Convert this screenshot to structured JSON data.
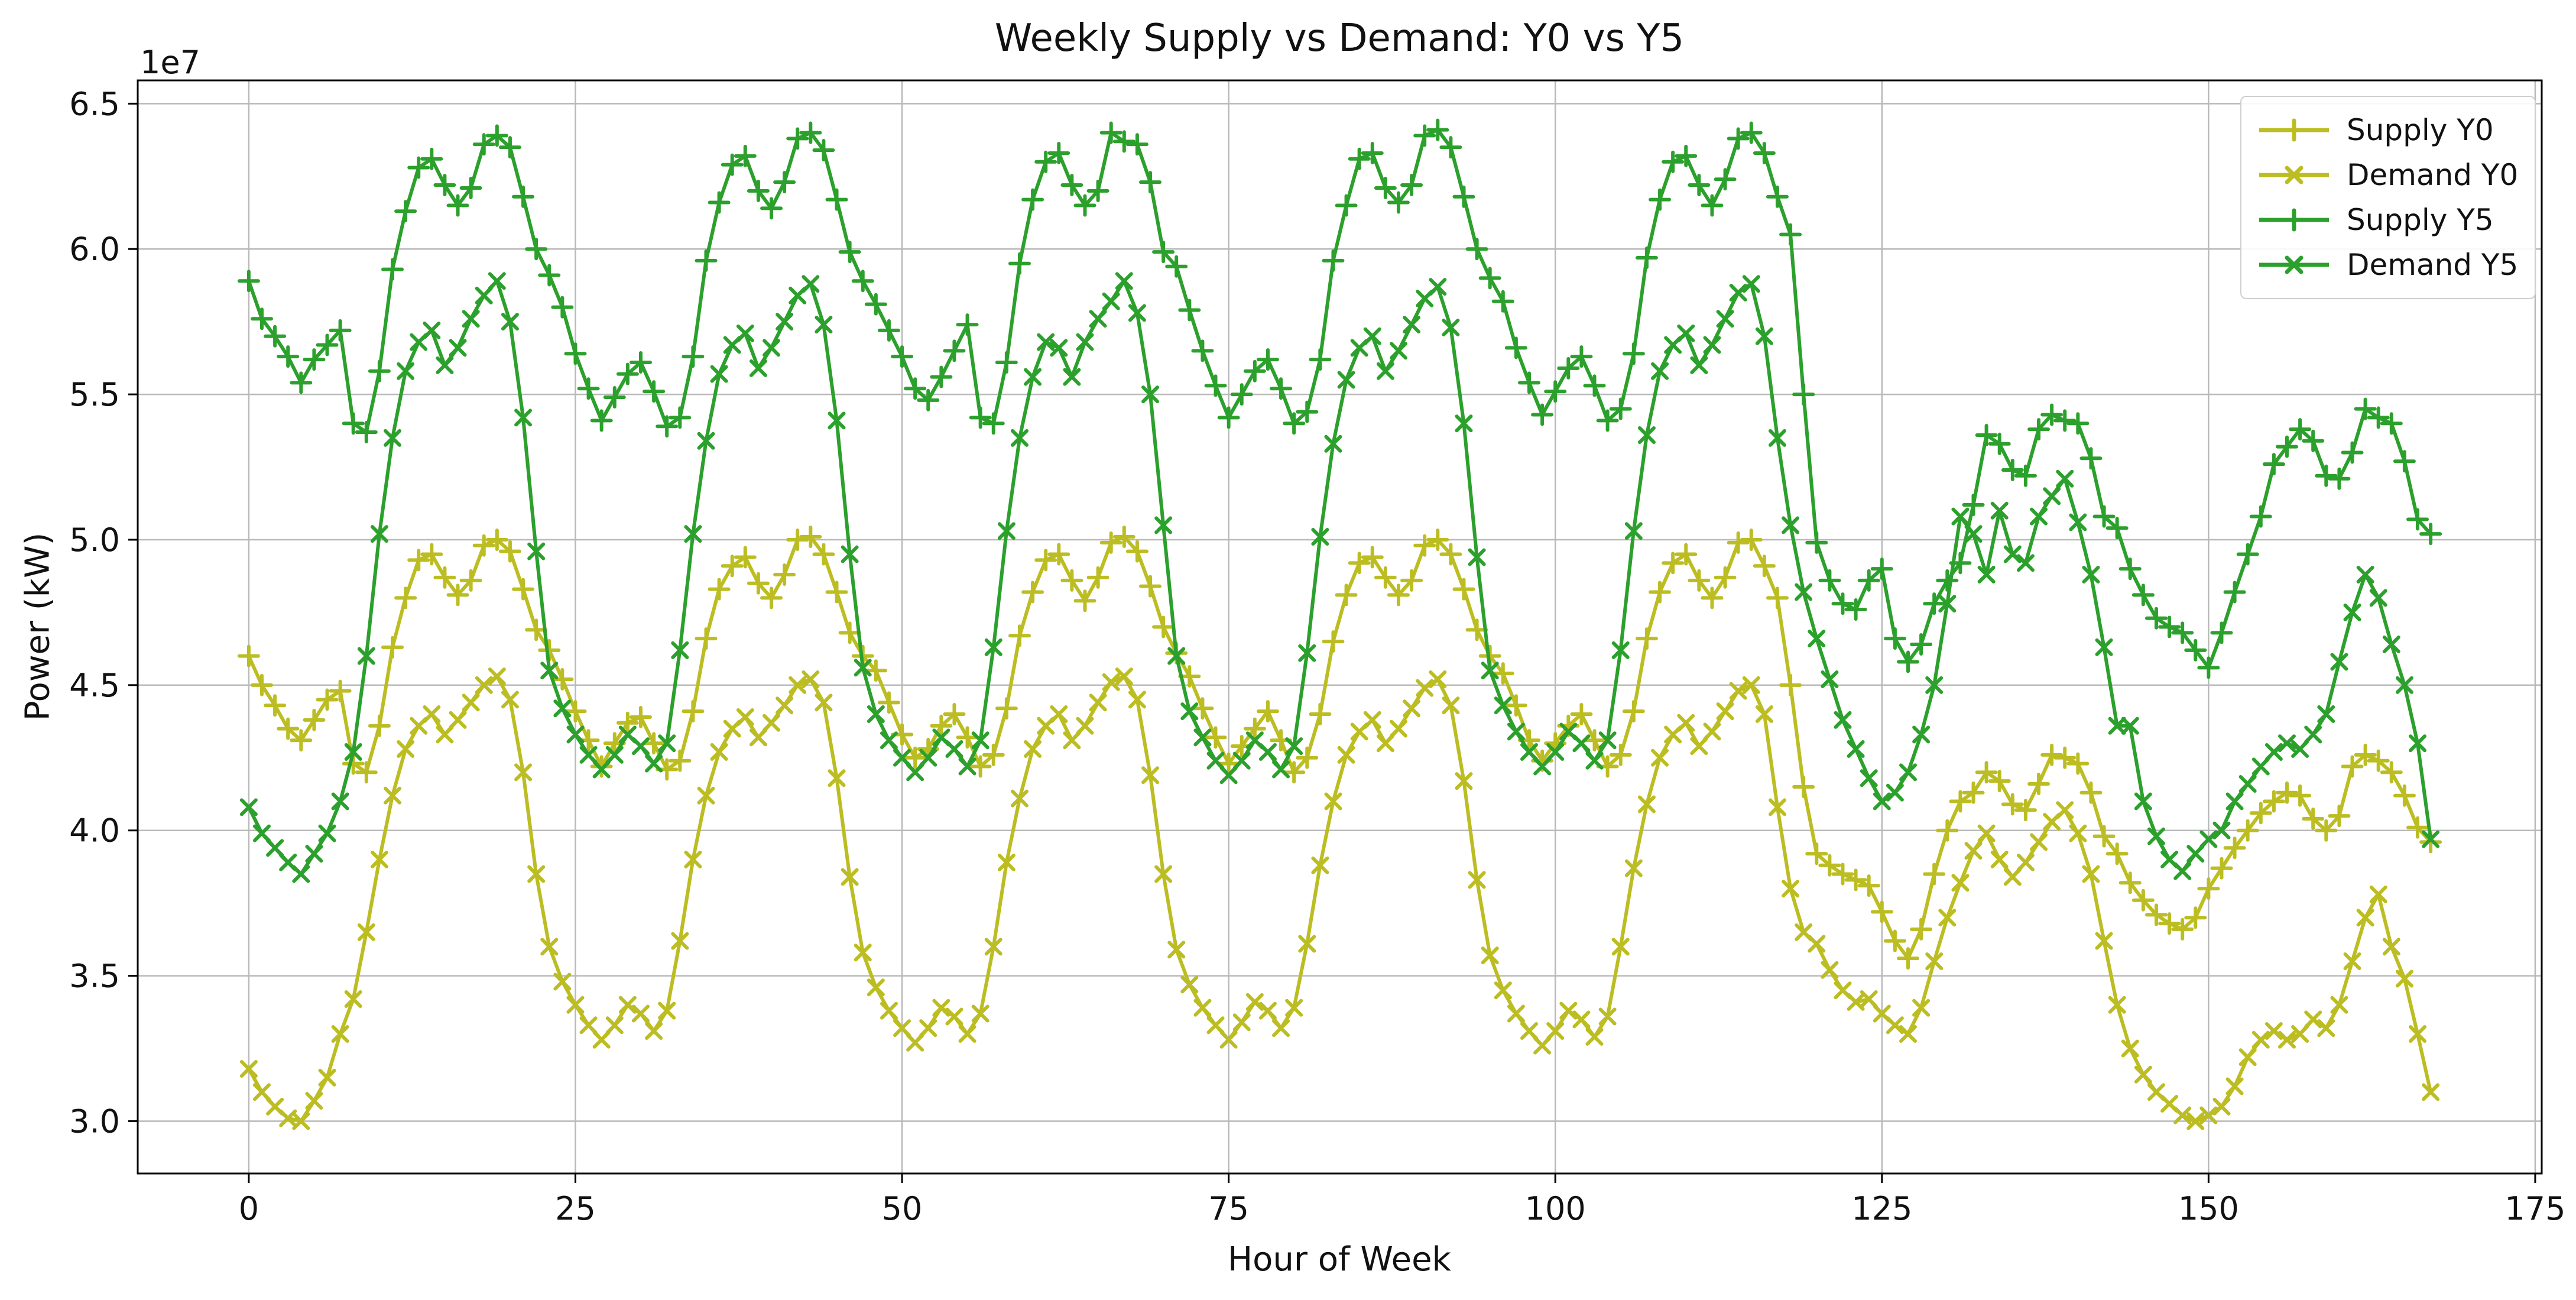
{
  "figure": {
    "title": "Weekly Supply vs Demand: Y0 vs Y5",
    "xlabel": "Hour of Week",
    "ylabel": "Power (kW)",
    "offset_text": "1e7"
  },
  "chart_data": {
    "type": "line",
    "title": "Weekly Supply vs Demand: Y0 vs Y5",
    "xlabel": "Hour of Week",
    "ylabel": "Power (kW)",
    "y_offset_label": "1e7",
    "values_scale": 10000000,
    "values_unit": "kW",
    "grid": true,
    "legend_position": "upper right",
    "x_ticks": [
      0,
      25,
      50,
      75,
      100,
      125,
      150,
      175
    ],
    "y_ticks": [
      3.0,
      3.5,
      4.0,
      4.5,
      5.0,
      5.5,
      6.0,
      6.5
    ],
    "xlim": [
      -8.5,
      175.5
    ],
    "ylim": [
      2.82,
      6.58
    ],
    "x": [
      0,
      1,
      2,
      3,
      4,
      5,
      6,
      7,
      8,
      9,
      10,
      11,
      12,
      13,
      14,
      15,
      16,
      17,
      18,
      19,
      20,
      21,
      22,
      23,
      24,
      25,
      26,
      27,
      28,
      29,
      30,
      31,
      32,
      33,
      34,
      35,
      36,
      37,
      38,
      39,
      40,
      41,
      42,
      43,
      44,
      45,
      46,
      47,
      48,
      49,
      50,
      51,
      52,
      53,
      54,
      55,
      56,
      57,
      58,
      59,
      60,
      61,
      62,
      63,
      64,
      65,
      66,
      67,
      68,
      69,
      70,
      71,
      72,
      73,
      74,
      75,
      76,
      77,
      78,
      79,
      80,
      81,
      82,
      83,
      84,
      85,
      86,
      87,
      88,
      89,
      90,
      91,
      92,
      93,
      94,
      95,
      96,
      97,
      98,
      99,
      100,
      101,
      102,
      103,
      104,
      105,
      106,
      107,
      108,
      109,
      110,
      111,
      112,
      113,
      114,
      115,
      116,
      117,
      118,
      119,
      120,
      121,
      122,
      123,
      124,
      125,
      126,
      127,
      128,
      129,
      130,
      131,
      132,
      133,
      134,
      135,
      136,
      137,
      138,
      139,
      140,
      141,
      142,
      143,
      144,
      145,
      146,
      147,
      148,
      149,
      150,
      151,
      152,
      153,
      154,
      155,
      156,
      157,
      158,
      159,
      160,
      161,
      162,
      163,
      164,
      165,
      166,
      167
    ],
    "series": [
      {
        "name": "Supply Y0",
        "color": "#bcbd22",
        "marker": "plus",
        "values": [
          4.6,
          4.5,
          4.43,
          4.35,
          4.31,
          4.38,
          4.45,
          4.48,
          4.23,
          4.2,
          4.36,
          4.63,
          4.8,
          4.93,
          4.95,
          4.87,
          4.81,
          4.86,
          4.98,
          5.0,
          4.96,
          4.83,
          4.69,
          4.62,
          4.52,
          4.41,
          4.31,
          4.22,
          4.3,
          4.37,
          4.39,
          4.3,
          4.21,
          4.24,
          4.41,
          4.66,
          4.83,
          4.91,
          4.94,
          4.85,
          4.8,
          4.88,
          5.0,
          5.01,
          4.95,
          4.82,
          4.68,
          4.6,
          4.55,
          4.44,
          4.33,
          4.25,
          4.28,
          4.36,
          4.4,
          4.32,
          4.22,
          4.26,
          4.42,
          4.67,
          4.82,
          4.93,
          4.95,
          4.86,
          4.79,
          4.87,
          4.99,
          5.01,
          4.96,
          4.84,
          4.7,
          4.61,
          4.53,
          4.42,
          4.32,
          4.23,
          4.29,
          4.35,
          4.41,
          4.31,
          4.2,
          4.25,
          4.4,
          4.65,
          4.81,
          4.92,
          4.94,
          4.87,
          4.81,
          4.86,
          4.98,
          5.0,
          4.95,
          4.83,
          4.69,
          4.6,
          4.54,
          4.43,
          4.31,
          4.24,
          4.3,
          4.36,
          4.4,
          4.31,
          4.22,
          4.26,
          4.41,
          4.66,
          4.82,
          4.92,
          4.95,
          4.86,
          4.8,
          4.87,
          4.99,
          5.0,
          4.91,
          4.8,
          4.5,
          4.15,
          3.92,
          3.88,
          3.85,
          3.83,
          3.81,
          3.72,
          3.62,
          3.56,
          3.66,
          3.85,
          4.0,
          4.1,
          4.13,
          4.2,
          4.17,
          4.09,
          4.07,
          4.16,
          4.26,
          4.25,
          4.23,
          4.13,
          3.98,
          3.92,
          3.82,
          3.76,
          3.71,
          3.68,
          3.66,
          3.7,
          3.8,
          3.87,
          3.94,
          4.0,
          4.06,
          4.1,
          4.13,
          4.12,
          4.04,
          4.0,
          4.05,
          4.22,
          4.26,
          4.24,
          4.2,
          4.12,
          4.01,
          3.96
        ]
      },
      {
        "name": "Demand Y0",
        "color": "#bcbd22",
        "marker": "x",
        "values": [
          3.18,
          3.1,
          3.05,
          3.01,
          3.0,
          3.07,
          3.15,
          3.3,
          3.42,
          3.65,
          3.9,
          4.12,
          4.28,
          4.36,
          4.4,
          4.33,
          4.38,
          4.44,
          4.5,
          4.53,
          4.45,
          4.2,
          3.85,
          3.6,
          3.48,
          3.4,
          3.33,
          3.28,
          3.33,
          3.4,
          3.37,
          3.31,
          3.38,
          3.62,
          3.9,
          4.12,
          4.27,
          4.35,
          4.39,
          4.32,
          4.37,
          4.43,
          4.5,
          4.52,
          4.44,
          4.18,
          3.84,
          3.58,
          3.46,
          3.38,
          3.32,
          3.27,
          3.32,
          3.39,
          3.36,
          3.3,
          3.37,
          3.6,
          3.89,
          4.11,
          4.28,
          4.36,
          4.4,
          4.31,
          4.36,
          4.44,
          4.51,
          4.53,
          4.45,
          4.19,
          3.85,
          3.59,
          3.47,
          3.39,
          3.33,
          3.28,
          3.34,
          3.41,
          3.38,
          3.32,
          3.39,
          3.61,
          3.88,
          4.1,
          4.26,
          4.34,
          4.38,
          4.3,
          4.35,
          4.42,
          4.49,
          4.52,
          4.43,
          4.17,
          3.83,
          3.57,
          3.45,
          3.37,
          3.31,
          3.26,
          3.31,
          3.38,
          3.35,
          3.29,
          3.36,
          3.6,
          3.87,
          4.09,
          4.25,
          4.33,
          4.37,
          4.29,
          4.34,
          4.41,
          4.48,
          4.5,
          4.4,
          4.08,
          3.8,
          3.65,
          3.61,
          3.52,
          3.45,
          3.41,
          3.42,
          3.37,
          3.33,
          3.3,
          3.39,
          3.55,
          3.7,
          3.82,
          3.93,
          3.99,
          3.9,
          3.84,
          3.89,
          3.96,
          4.03,
          4.07,
          3.99,
          3.85,
          3.62,
          3.4,
          3.25,
          3.16,
          3.1,
          3.06,
          3.02,
          3.0,
          3.02,
          3.05,
          3.12,
          3.22,
          3.28,
          3.31,
          3.28,
          3.3,
          3.35,
          3.32,
          3.4,
          3.55,
          3.7,
          3.78,
          3.6,
          3.49,
          3.3,
          3.1
        ]
      },
      {
        "name": "Supply Y5",
        "color": "#2ca02c",
        "marker": "plus",
        "values": [
          5.89,
          5.76,
          5.7,
          5.63,
          5.54,
          5.62,
          5.67,
          5.72,
          5.4,
          5.37,
          5.58,
          5.93,
          6.13,
          6.28,
          6.31,
          6.22,
          6.15,
          6.21,
          6.36,
          6.39,
          6.35,
          6.18,
          6.0,
          5.91,
          5.8,
          5.64,
          5.52,
          5.41,
          5.49,
          5.57,
          5.61,
          5.51,
          5.39,
          5.42,
          5.63,
          5.96,
          6.16,
          6.29,
          6.32,
          6.2,
          6.14,
          6.23,
          6.38,
          6.4,
          6.34,
          6.17,
          5.99,
          5.89,
          5.81,
          5.72,
          5.63,
          5.52,
          5.48,
          5.56,
          5.65,
          5.74,
          5.42,
          5.4,
          5.61,
          5.95,
          6.17,
          6.3,
          6.33,
          6.22,
          6.15,
          6.2,
          6.4,
          6.37,
          6.36,
          6.23,
          5.99,
          5.94,
          5.79,
          5.65,
          5.53,
          5.42,
          5.5,
          5.58,
          5.62,
          5.52,
          5.4,
          5.44,
          5.62,
          5.96,
          6.15,
          6.31,
          6.33,
          6.21,
          6.16,
          6.22,
          6.39,
          6.41,
          6.35,
          6.18,
          6.0,
          5.9,
          5.82,
          5.66,
          5.54,
          5.43,
          5.51,
          5.59,
          5.63,
          5.53,
          5.41,
          5.45,
          5.64,
          5.97,
          6.17,
          6.3,
          6.32,
          6.22,
          6.15,
          6.24,
          6.38,
          6.4,
          6.33,
          6.18,
          6.05,
          5.5,
          4.99,
          4.86,
          4.78,
          4.76,
          4.86,
          4.9,
          4.66,
          4.58,
          4.64,
          4.78,
          4.86,
          4.92,
          5.12,
          5.36,
          5.33,
          5.24,
          5.22,
          5.38,
          5.43,
          5.41,
          5.4,
          5.28,
          5.08,
          5.04,
          4.9,
          4.81,
          4.73,
          4.7,
          4.68,
          4.62,
          4.56,
          4.68,
          4.82,
          4.95,
          5.08,
          5.26,
          5.32,
          5.38,
          5.34,
          5.22,
          5.21,
          5.3,
          5.45,
          5.42,
          5.4,
          5.27,
          5.07,
          5.02
        ]
      },
      {
        "name": "Demand Y5",
        "color": "#2ca02c",
        "marker": "x",
        "values": [
          4.08,
          3.99,
          3.94,
          3.89,
          3.85,
          3.92,
          3.99,
          4.1,
          4.27,
          4.6,
          5.02,
          5.35,
          5.58,
          5.68,
          5.72,
          5.6,
          5.66,
          5.76,
          5.84,
          5.89,
          5.75,
          5.42,
          4.96,
          4.55,
          4.42,
          4.33,
          4.26,
          4.21,
          4.26,
          4.33,
          4.29,
          4.23,
          4.3,
          4.62,
          5.02,
          5.34,
          5.57,
          5.67,
          5.71,
          5.59,
          5.66,
          5.75,
          5.84,
          5.88,
          5.74,
          5.41,
          4.95,
          4.56,
          4.4,
          4.31,
          4.25,
          4.2,
          4.25,
          4.32,
          4.28,
          4.22,
          4.31,
          4.63,
          5.03,
          5.35,
          5.56,
          5.68,
          5.66,
          5.56,
          5.68,
          5.76,
          5.82,
          5.89,
          5.78,
          5.5,
          5.05,
          4.6,
          4.41,
          4.32,
          4.24,
          4.19,
          4.24,
          4.31,
          4.27,
          4.21,
          4.29,
          4.61,
          5.01,
          5.33,
          5.55,
          5.66,
          5.7,
          5.58,
          5.65,
          5.74,
          5.83,
          5.87,
          5.73,
          5.4,
          4.94,
          4.55,
          4.43,
          4.34,
          4.27,
          4.22,
          4.27,
          4.34,
          4.3,
          4.24,
          4.31,
          4.62,
          5.03,
          5.36,
          5.58,
          5.67,
          5.71,
          5.6,
          5.67,
          5.76,
          5.85,
          5.88,
          5.7,
          5.35,
          5.05,
          4.82,
          4.66,
          4.52,
          4.38,
          4.28,
          4.18,
          4.1,
          4.13,
          4.2,
          4.33,
          4.5,
          4.78,
          5.08,
          5.02,
          4.88,
          5.1,
          4.95,
          4.92,
          5.08,
          5.15,
          5.21,
          5.06,
          4.88,
          4.63,
          4.36,
          4.36,
          4.1,
          3.98,
          3.9,
          3.86,
          3.92,
          3.97,
          4.0,
          4.1,
          4.16,
          4.22,
          4.27,
          4.3,
          4.28,
          4.33,
          4.4,
          4.58,
          4.75,
          4.88,
          4.8,
          4.64,
          4.5,
          4.3,
          3.97
        ]
      }
    ]
  }
}
